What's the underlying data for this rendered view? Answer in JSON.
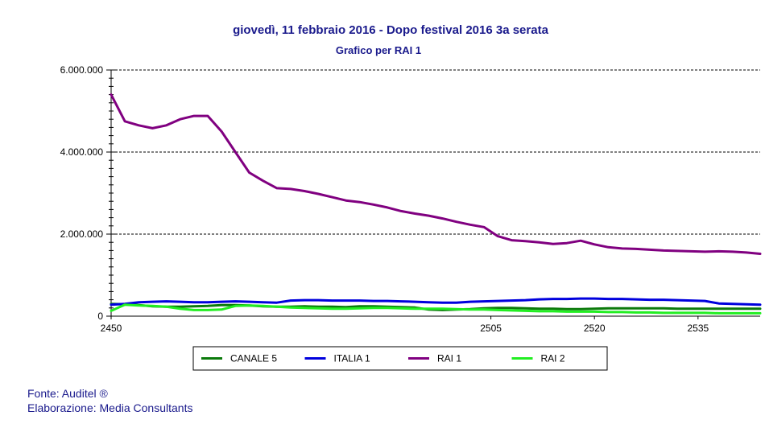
{
  "chart_data": {
    "type": "line",
    "title": "giovedì, 11 febbraio 2016 - Dopo festival 2016 3a serata",
    "subtitle": "Grafico per RAI 1",
    "xlabel": "",
    "ylabel": "",
    "xlim": [
      2450,
      2544
    ],
    "ylim": [
      0,
      6000000
    ],
    "x_ticks": [
      2450,
      2505,
      2520,
      2535
    ],
    "y_ticks": [
      0,
      2000000,
      4000000,
      6000000
    ],
    "y_tick_labels": [
      "0",
      "2.000.000",
      "4.000.000",
      "6.000.000"
    ],
    "grid": "horizontal dashed at 2.000.000 and 4.000.000",
    "legend_position": "bottom",
    "x": [
      2450,
      2452,
      2454,
      2456,
      2458,
      2460,
      2462,
      2464,
      2466,
      2468,
      2470,
      2472,
      2474,
      2476,
      2478,
      2480,
      2482,
      2484,
      2486,
      2488,
      2490,
      2492,
      2494,
      2496,
      2498,
      2500,
      2502,
      2504,
      2506,
      2508,
      2510,
      2512,
      2514,
      2516,
      2518,
      2520,
      2522,
      2524,
      2526,
      2528,
      2530,
      2532,
      2534,
      2536,
      2538,
      2540,
      2542,
      2544
    ],
    "series": [
      {
        "name": "CANALE 5",
        "color": "#0b7a0b",
        "values": [
          300000,
          290000,
          270000,
          240000,
          230000,
          230000,
          240000,
          250000,
          270000,
          270000,
          260000,
          240000,
          230000,
          230000,
          240000,
          230000,
          230000,
          220000,
          240000,
          240000,
          230000,
          220000,
          210000,
          160000,
          150000,
          160000,
          170000,
          190000,
          200000,
          200000,
          190000,
          180000,
          180000,
          170000,
          170000,
          180000,
          190000,
          190000,
          190000,
          190000,
          190000,
          180000,
          180000,
          180000,
          180000,
          180000,
          180000,
          180000
        ]
      },
      {
        "name": "ITALIA 1",
        "color": "#0000dd",
        "values": [
          280000,
          300000,
          340000,
          350000,
          360000,
          350000,
          340000,
          340000,
          350000,
          360000,
          350000,
          340000,
          330000,
          380000,
          390000,
          390000,
          380000,
          380000,
          380000,
          370000,
          370000,
          360000,
          350000,
          340000,
          330000,
          330000,
          350000,
          360000,
          370000,
          380000,
          390000,
          410000,
          420000,
          420000,
          430000,
          430000,
          420000,
          420000,
          410000,
          400000,
          400000,
          390000,
          380000,
          370000,
          310000,
          300000,
          290000,
          280000
        ]
      },
      {
        "name": "RAI 1",
        "color": "#800080",
        "values": [
          5400000,
          4750000,
          4650000,
          4580000,
          4650000,
          4800000,
          4880000,
          4880000,
          4500000,
          4000000,
          3500000,
          3300000,
          3120000,
          3100000,
          3050000,
          2980000,
          2900000,
          2820000,
          2780000,
          2720000,
          2650000,
          2560000,
          2500000,
          2450000,
          2380000,
          2300000,
          2230000,
          2170000,
          1950000,
          1850000,
          1830000,
          1800000,
          1760000,
          1780000,
          1840000,
          1750000,
          1680000,
          1650000,
          1640000,
          1620000,
          1600000,
          1590000,
          1580000,
          1570000,
          1580000,
          1570000,
          1550000,
          1520000
        ]
      },
      {
        "name": "RAI 2",
        "color": "#22ee22",
        "values": [
          130000,
          280000,
          260000,
          250000,
          230000,
          180000,
          150000,
          150000,
          160000,
          250000,
          260000,
          250000,
          230000,
          210000,
          200000,
          190000,
          180000,
          180000,
          190000,
          200000,
          200000,
          190000,
          180000,
          180000,
          180000,
          170000,
          160000,
          160000,
          150000,
          140000,
          130000,
          120000,
          120000,
          110000,
          110000,
          110000,
          100000,
          100000,
          90000,
          90000,
          80000,
          80000,
          80000,
          80000,
          70000,
          70000,
          70000,
          70000
        ]
      }
    ]
  },
  "footer": {
    "source": "Fonte: Auditel ®",
    "elaboration": "Elaborazione: Media Consultants"
  }
}
